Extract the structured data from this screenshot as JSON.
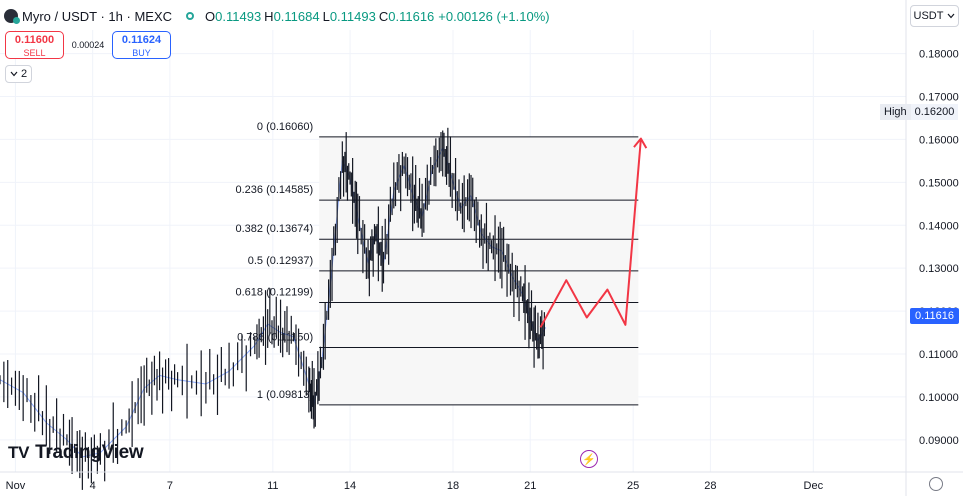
{
  "header": {
    "symbol": "Myro / USDT · 1h · MEXC",
    "open_label": "O",
    "open": "0.11493",
    "high_label": "H",
    "high": "0.11684",
    "low_label": "L",
    "low": "0.11493",
    "close_label": "C",
    "close": "0.11616",
    "change": "+0.00126 (+1.10%)"
  },
  "trade": {
    "sell_price": "0.11600",
    "sell_label": "SELL",
    "spread": "0.00024",
    "buy_price": "0.11624",
    "buy_label": "BUY"
  },
  "indicator_toggle": {
    "count": "2",
    "icon": "chevron-down-icon"
  },
  "currency_button": {
    "label": "USDT",
    "icon": "chevron-down-icon"
  },
  "high_marker": {
    "label": "High",
    "value": "0.16200"
  },
  "last_price_tag": "0.11616",
  "logo_text": "TradingView",
  "colors": {
    "up": "#089981",
    "down": "#f23645",
    "projection": "#f23645",
    "accent": "#2962ff",
    "candle": "#131722",
    "wick_up": "#2962ff"
  },
  "chart_data": {
    "type": "line",
    "price_axis": {
      "ylim": [
        0.0825,
        0.1855
      ],
      "ticks": [
        0.18,
        0.17,
        0.16,
        0.15,
        0.14,
        0.13,
        0.12,
        0.11,
        0.1,
        0.09
      ],
      "tick_labels": [
        "0.18000",
        "0.17000",
        "0.16000",
        "0.15000",
        "0.14000",
        "0.13000",
        "0.12000",
        "0.11000",
        "0.10000",
        "0.09000"
      ]
    },
    "time_axis": {
      "xlim": [
        0.4,
        35.6
      ],
      "ticks": [
        1,
        4,
        7,
        11,
        14,
        18,
        21,
        25,
        28,
        32
      ],
      "tick_labels": [
        "Nov",
        "4",
        "7",
        "11",
        "14",
        "18",
        "21",
        "25",
        "28",
        "Dec"
      ]
    },
    "grid": true,
    "price_series": {
      "name": "",
      "x": [
        0.4,
        1.3,
        2.2,
        3.0,
        3.6,
        4.3,
        5.3,
        6.0,
        6.6,
        7.3,
        8.4,
        9.3,
        10.3,
        10.8,
        11.3,
        11.8,
        12.4,
        12.6,
        12.9,
        13.3,
        13.7,
        14.0,
        14.3,
        14.7,
        15.0,
        15.3,
        15.7,
        16.1,
        16.5,
        16.8,
        17.2,
        17.6,
        17.9,
        18.3,
        18.7,
        19.1,
        19.5,
        19.9,
        20.3,
        20.7,
        21.0,
        21.3,
        21.6
      ],
      "y": [
        0.104,
        0.101,
        0.094,
        0.09,
        0.086,
        0.087,
        0.093,
        0.102,
        0.105,
        0.104,
        0.103,
        0.106,
        0.112,
        0.117,
        0.115,
        0.114,
        0.103,
        0.098,
        0.108,
        0.13,
        0.155,
        0.151,
        0.142,
        0.131,
        0.138,
        0.131,
        0.148,
        0.154,
        0.146,
        0.142,
        0.153,
        0.158,
        0.152,
        0.144,
        0.147,
        0.138,
        0.135,
        0.134,
        0.128,
        0.124,
        0.118,
        0.113,
        0.1162
      ]
    },
    "fibonacci": [
      {
        "label": "0 (0.16060)",
        "value": 0.1606
      },
      {
        "label": "0.236 (0.14585)",
        "value": 0.14585
      },
      {
        "label": "0.382 (0.13674)",
        "value": 0.13674
      },
      {
        "label": "0.5 (0.12937)",
        "value": 0.12937
      },
      {
        "label": "0.618 (0.12199)",
        "value": 0.12199
      },
      {
        "label": "0.786 (0.11150)",
        "value": 0.1115
      },
      {
        "label": "1 (0.09813)",
        "value": 0.09813
      }
    ],
    "fib_x_range": [
      12.8,
      25.2
    ],
    "projection": {
      "x": [
        21.4,
        22.4,
        23.2,
        24.0,
        24.7,
        25.3
      ],
      "y": [
        0.1162,
        0.1272,
        0.1185,
        0.125,
        0.1168,
        0.1602
      ]
    }
  }
}
